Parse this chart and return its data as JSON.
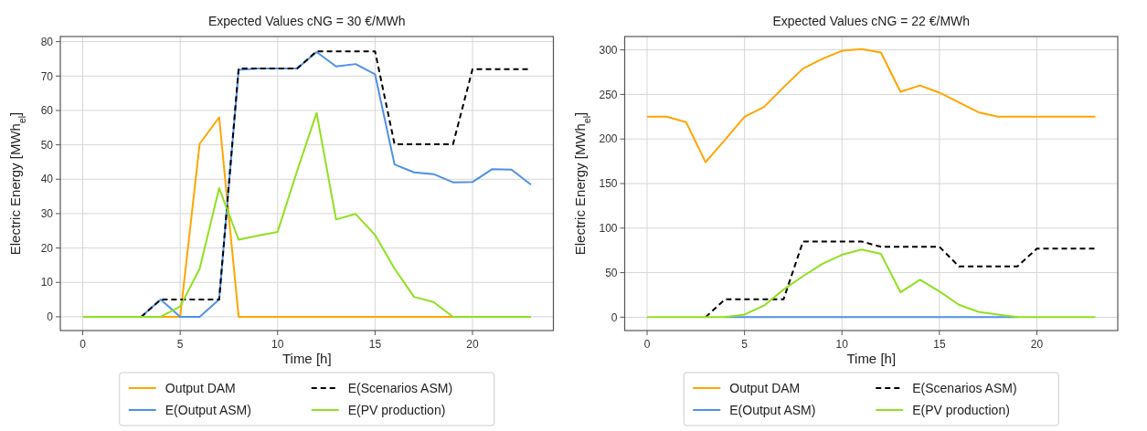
{
  "chart_data": [
    {
      "type": "line",
      "title": "Expected Values cNG = 30 €/MWh",
      "xlabel": "Time [h]",
      "ylabel": "Electric Energy [MWh$_{el}$]",
      "x": [
        0,
        1,
        2,
        3,
        4,
        5,
        6,
        7,
        8,
        9,
        10,
        11,
        12,
        13,
        14,
        15,
        16,
        17,
        18,
        19,
        20,
        21,
        22,
        23
      ],
      "xlim": [
        -1.15,
        24.15
      ],
      "xticks": [
        0,
        5,
        10,
        15,
        20
      ],
      "ylim": [
        -4,
        81.5
      ],
      "yticks": [
        0,
        10,
        20,
        30,
        40,
        50,
        60,
        70,
        80
      ],
      "grid": true,
      "legend": "bottom",
      "series": [
        {
          "name": "Output DAM",
          "color": "#ffa500",
          "values": [
            null,
            null,
            null,
            0,
            0,
            0,
            50.3,
            58,
            0,
            0,
            0,
            0,
            0,
            0,
            0,
            0,
            0,
            0,
            0,
            0,
            null,
            null,
            null,
            null
          ]
        },
        {
          "name": "E(Output ASM)",
          "color": "#5090e8",
          "values": [
            null,
            null,
            null,
            0,
            5,
            0,
            0,
            5,
            71.8,
            72.2,
            72.2,
            72.2,
            77,
            72.8,
            73.5,
            70.5,
            44.3,
            42,
            41.5,
            39.1,
            39.2,
            42.9,
            42.8,
            38.4
          ]
        },
        {
          "name": "E(Scenarios ASM)",
          "color": "#000000",
          "line_style": "dashed",
          "values": [
            null,
            null,
            null,
            0,
            5,
            5,
            5,
            5,
            72.2,
            72.2,
            72.2,
            72.2,
            77.2,
            77.2,
            77.2,
            77.2,
            50.2,
            50.2,
            50.2,
            50.2,
            72,
            72,
            72,
            72
          ]
        },
        {
          "name": "E(PV production)",
          "color": "#90e020",
          "values": [
            0,
            0,
            0,
            0,
            0,
            3,
            14,
            37.4,
            22.4,
            23.6,
            24.7,
            42.4,
            59.3,
            28.3,
            29.9,
            23.8,
            14,
            5.8,
            4.3,
            0,
            0,
            0,
            0,
            0
          ]
        }
      ]
    },
    {
      "type": "line",
      "title": "Expected Values cNG = 22 €/MWh",
      "xlabel": "Time [h]",
      "ylabel": "Electric Energy [MWh$_{el}$]",
      "x": [
        0,
        1,
        2,
        3,
        4,
        5,
        6,
        7,
        8,
        9,
        10,
        11,
        12,
        13,
        14,
        15,
        16,
        17,
        18,
        19,
        20,
        21,
        22,
        23
      ],
      "xlim": [
        -1.15,
        24.15
      ],
      "xticks": [
        0,
        5,
        10,
        15,
        20
      ],
      "ylim": [
        -15,
        315
      ],
      "yticks": [
        0,
        50,
        100,
        150,
        200,
        250,
        300
      ],
      "grid": true,
      "legend": "bottom",
      "series": [
        {
          "name": "Output DAM",
          "color": "#ffa500",
          "values": [
            225,
            225,
            219,
            174,
            199,
            225,
            236,
            258,
            279,
            290,
            299,
            301,
            297,
            253,
            260,
            252,
            241,
            230,
            225,
            225,
            225,
            225,
            225,
            225
          ]
        },
        {
          "name": "E(Output ASM)",
          "color": "#5090e8",
          "values": [
            null,
            null,
            null,
            null,
            0,
            0,
            0,
            0,
            0,
            0,
            0,
            0,
            0,
            0,
            0,
            0,
            0,
            0,
            0,
            0,
            null,
            null,
            null,
            null
          ]
        },
        {
          "name": "E(Scenarios ASM)",
          "color": "#000000",
          "line_style": "dashed",
          "values": [
            null,
            null,
            null,
            0,
            20,
            20,
            20,
            20,
            85,
            85,
            85,
            85,
            79,
            79,
            79,
            79,
            57,
            57,
            57,
            57,
            77,
            77,
            77,
            77
          ]
        },
        {
          "name": "E(PV production)",
          "color": "#90e020",
          "values": [
            0,
            0,
            0,
            0,
            0,
            3,
            13,
            31,
            46,
            60,
            70,
            76,
            71,
            28,
            42,
            29,
            14,
            6,
            3,
            0,
            0,
            0,
            0,
            0
          ]
        }
      ]
    }
  ]
}
